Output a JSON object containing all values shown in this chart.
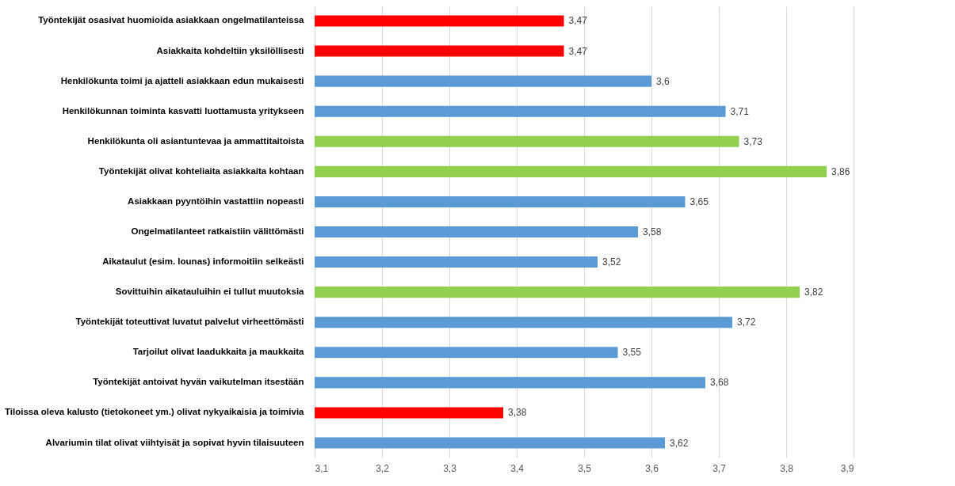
{
  "chart_data": {
    "type": "bar",
    "orientation": "horizontal",
    "categories": [
      "Työntekijät osasivat huomioida asiakkaan ongelmatilanteissa",
      "Asiakkaita kohdeltiin yksilöllisesti",
      "Henkilökunta toimi ja ajatteli asiakkaan edun mukaisesti",
      "Henkilökunnan toiminta kasvatti luottamusta yritykseen ",
      "Henkilökunta oli asiantuntevaa ja ammattitaitoista",
      "Työntekijät olivat kohteliaita asiakkaita kohtaan",
      "Asiakkaan pyyntöihin vastattiin nopeasti",
      "Ongelmatilanteet ratkaistiin välittömästi",
      "Aikataulut (esim. lounas) informoitiin selkeästi",
      "Sovittuihin aikatauluihin ei tullut muutoksia",
      "Työntekijät toteuttivat luvatut palvelut virheettömästi",
      "Tarjoilut olivat laadukkaita ja maukkaita",
      "Työntekijät antoivat hyvän vaikutelman itsestään",
      "Tiloissa oleva kalusto (tietokoneet ym.) olivat nykyaikaisia ja toimivia",
      "Alvariumin tilat olivat viihtyisät ja sopivat hyvin tilaisuuteen"
    ],
    "values": [
      3.47,
      3.47,
      3.6,
      3.71,
      3.73,
      3.86,
      3.65,
      3.58,
      3.52,
      3.82,
      3.72,
      3.55,
      3.68,
      3.38,
      3.62
    ],
    "value_labels": [
      "3,47",
      "3,47",
      "3,6",
      "3,71",
      "3,73",
      "3,86",
      "3,65",
      "3,58",
      "3,52",
      "3,82",
      "3,72",
      "3,55",
      "3,68",
      "3,38",
      "3,62"
    ],
    "colors": [
      "#ff0000",
      "#ff0000",
      "#5b9bd5",
      "#5b9bd5",
      "#92d050",
      "#92d050",
      "#5b9bd5",
      "#5b9bd5",
      "#5b9bd5",
      "#92d050",
      "#5b9bd5",
      "#5b9bd5",
      "#5b9bd5",
      "#ff0000",
      "#5b9bd5"
    ],
    "xlim": [
      3.1,
      3.9
    ],
    "xticks": [
      {
        "value": 3.1,
        "label": "3,1"
      },
      {
        "value": 3.2,
        "label": "3,2"
      },
      {
        "value": 3.3,
        "label": "3,3"
      },
      {
        "value": 3.4,
        "label": "3,4"
      },
      {
        "value": 3.5,
        "label": "3,5"
      },
      {
        "value": 3.6,
        "label": "3,6"
      },
      {
        "value": 3.7,
        "label": "3,7"
      },
      {
        "value": 3.8,
        "label": "3,8"
      },
      {
        "value": 3.9,
        "label": "3,9"
      }
    ],
    "grid": "x"
  }
}
